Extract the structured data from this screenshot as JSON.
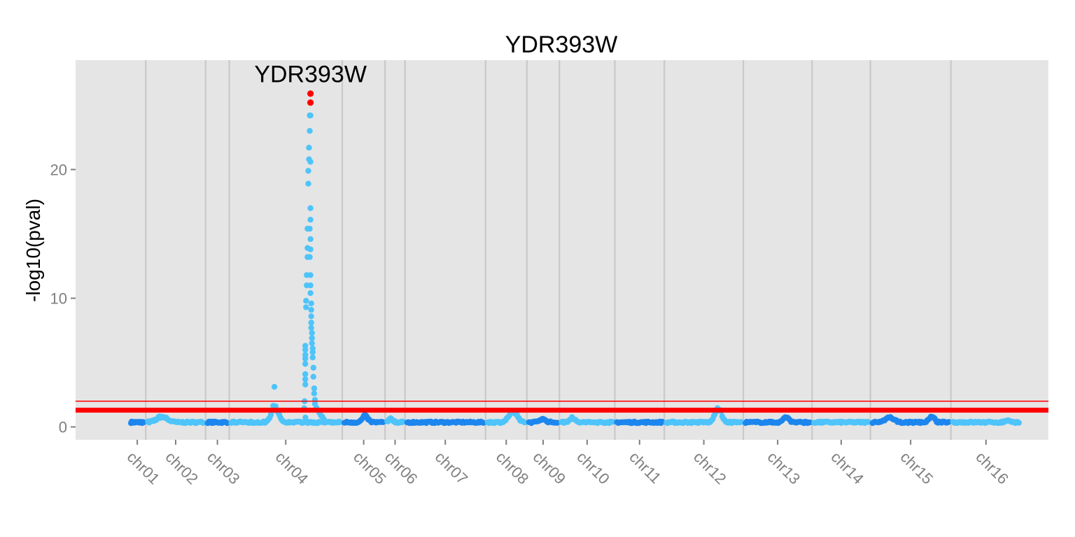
{
  "chart_data": {
    "type": "scatter",
    "title": "YDR393W",
    "xlabel": "",
    "ylabel": "-log10(pval)",
    "ylim": [
      -1,
      28.5
    ],
    "yticks": [
      0,
      10,
      20
    ],
    "grid": true,
    "legend": "none",
    "x_categories": [
      "chr01",
      "chr02",
      "chr03",
      "chr04",
      "chr05",
      "chr06",
      "chr07",
      "chr08",
      "chr09",
      "chr10",
      "chr11",
      "chr12",
      "chr13",
      "chr14",
      "chr15",
      "chr16"
    ],
    "chromosome_spans": [
      {
        "name": "chr01",
        "start": 0,
        "end": 0.23,
        "color": "#1C86EE"
      },
      {
        "name": "chr02",
        "start": 0.23,
        "end": 1.04,
        "color": "#4EC4FA"
      },
      {
        "name": "chr03",
        "start": 1.04,
        "end": 1.36,
        "color": "#1C86EE"
      },
      {
        "name": "chr04",
        "start": 1.36,
        "end": 2.89,
        "color": "#4EC4FA"
      },
      {
        "name": "chr05",
        "start": 2.89,
        "end": 3.47,
        "color": "#1C86EE"
      },
      {
        "name": "chr06",
        "start": 3.47,
        "end": 3.74,
        "color": "#4EC4FA"
      },
      {
        "name": "chr07",
        "start": 3.74,
        "end": 4.83,
        "color": "#1C86EE"
      },
      {
        "name": "chr08",
        "start": 4.83,
        "end": 5.39,
        "color": "#4EC4FA"
      },
      {
        "name": "chr09",
        "start": 5.39,
        "end": 5.83,
        "color": "#1C86EE"
      },
      {
        "name": "chr10",
        "start": 5.83,
        "end": 6.58,
        "color": "#4EC4FA"
      },
      {
        "name": "chr11",
        "start": 6.58,
        "end": 7.25,
        "color": "#1C86EE"
      },
      {
        "name": "chr12",
        "start": 7.25,
        "end": 8.32,
        "color": "#4EC4FA"
      },
      {
        "name": "chr13",
        "start": 8.32,
        "end": 9.25,
        "color": "#1C86EE"
      },
      {
        "name": "chr14",
        "start": 9.25,
        "end": 10.04,
        "color": "#4EC4FA"
      },
      {
        "name": "chr15",
        "start": 10.04,
        "end": 11.13,
        "color": "#1C86EE"
      },
      {
        "name": "chr16",
        "start": 11.13,
        "end": 12.08,
        "color": "#4EC4FA"
      }
    ],
    "baseline": 0.3,
    "bumps": [
      {
        "chr": "chr02",
        "x": 0.45,
        "peak": 0.8,
        "width": 0.1
      },
      {
        "chr": "chr04",
        "x": 1.98,
        "peak": 1.5,
        "width": 0.07
      },
      {
        "chr": "chr04",
        "x": 1.97,
        "peak": 2.1,
        "width": 0.01
      },
      {
        "chr": "chr04",
        "x": 2.38,
        "peak": 2.0,
        "width": 0.01
      },
      {
        "chr": "chr05",
        "x": 3.2,
        "peak": 0.9,
        "width": 0.05
      },
      {
        "chr": "chr06",
        "x": 3.55,
        "peak": 0.6,
        "width": 0.04
      },
      {
        "chr": "chr08",
        "x": 5.2,
        "peak": 1.2,
        "width": 0.08
      },
      {
        "chr": "chr09",
        "x": 5.6,
        "peak": 0.6,
        "width": 0.06
      },
      {
        "chr": "chr10",
        "x": 6.0,
        "peak": 0.7,
        "width": 0.05
      },
      {
        "chr": "chr12",
        "x": 7.98,
        "peak": 1.6,
        "width": 0.06
      },
      {
        "chr": "chr13",
        "x": 8.9,
        "peak": 0.8,
        "width": 0.05
      },
      {
        "chr": "chr15",
        "x": 10.3,
        "peak": 0.7,
        "width": 0.08
      },
      {
        "chr": "chr15",
        "x": 10.87,
        "peak": 0.8,
        "width": 0.05
      },
      {
        "chr": "chr16",
        "x": 11.9,
        "peak": 0.5,
        "width": 0.04
      }
    ],
    "peak_points": [
      {
        "x": 2.38,
        "y": 2.0
      },
      {
        "x": 2.39,
        "y": 3.3
      },
      {
        "x": 2.39,
        "y": 3.7
      },
      {
        "x": 2.39,
        "y": 4.1
      },
      {
        "x": 2.39,
        "y": 4.9
      },
      {
        "x": 2.39,
        "y": 5.3
      },
      {
        "x": 2.39,
        "y": 5.6
      },
      {
        "x": 2.39,
        "y": 6.0
      },
      {
        "x": 2.39,
        "y": 6.3
      },
      {
        "x": 2.4,
        "y": 9.3
      },
      {
        "x": 2.4,
        "y": 9.8
      },
      {
        "x": 2.41,
        "y": 11.0
      },
      {
        "x": 2.41,
        "y": 11.8
      },
      {
        "x": 2.42,
        "y": 13.2
      },
      {
        "x": 2.42,
        "y": 13.9
      },
      {
        "x": 2.42,
        "y": 15.4
      },
      {
        "x": 2.43,
        "y": 18.9
      },
      {
        "x": 2.43,
        "y": 19.9
      },
      {
        "x": 2.44,
        "y": 20.8
      },
      {
        "x": 2.44,
        "y": 21.7
      },
      {
        "x": 2.45,
        "y": 23.0
      },
      {
        "x": 2.45,
        "y": 24.2
      },
      {
        "x": 2.45,
        "y": 13.2
      },
      {
        "x": 2.45,
        "y": 15.4
      },
      {
        "x": 2.46,
        "y": 24.2
      },
      {
        "x": 2.46,
        "y": 20.6
      },
      {
        "x": 2.46,
        "y": 17.0
      },
      {
        "x": 2.46,
        "y": 16.1
      },
      {
        "x": 2.46,
        "y": 14.6
      },
      {
        "x": 2.46,
        "y": 13.8
      },
      {
        "x": 2.46,
        "y": 11.8
      },
      {
        "x": 2.46,
        "y": 11.0
      },
      {
        "x": 2.46,
        "y": 10.4
      },
      {
        "x": 2.47,
        "y": 9.6
      },
      {
        "x": 2.47,
        "y": 9.1
      },
      {
        "x": 2.47,
        "y": 8.6
      },
      {
        "x": 2.47,
        "y": 8.1
      },
      {
        "x": 2.47,
        "y": 7.7
      },
      {
        "x": 2.48,
        "y": 7.3
      },
      {
        "x": 2.48,
        "y": 6.9
      },
      {
        "x": 2.48,
        "y": 6.5
      },
      {
        "x": 2.49,
        "y": 6.1
      },
      {
        "x": 2.49,
        "y": 5.8
      },
      {
        "x": 2.49,
        "y": 5.4
      },
      {
        "x": 2.5,
        "y": 4.6
      },
      {
        "x": 2.5,
        "y": 3.9
      },
      {
        "x": 2.51,
        "y": 3.0
      },
      {
        "x": 2.51,
        "y": 2.6
      },
      {
        "x": 2.52,
        "y": 2.1
      },
      {
        "x": 2.52,
        "y": 1.8
      },
      {
        "x": 2.54,
        "y": 1.5
      },
      {
        "x": 2.56,
        "y": 1.3
      },
      {
        "x": 2.58,
        "y": 1.1
      },
      {
        "x": 2.6,
        "y": 0.9
      },
      {
        "x": 2.62,
        "y": 0.8
      },
      {
        "x": 2.64,
        "y": 0.6
      }
    ],
    "highlight_points": [
      {
        "x": 2.46,
        "y": 25.9,
        "color": "#FF0000"
      },
      {
        "x": 2.46,
        "y": 25.2,
        "color": "#FF0000"
      }
    ],
    "annotations": [
      {
        "text": "YDR393W",
        "x": 2.46,
        "y": 26.9
      }
    ],
    "hlines": [
      {
        "y": 1.3,
        "color": "#FF0000",
        "kind": "thick"
      },
      {
        "y": 2.0,
        "color": "#FF0000",
        "kind": "thin"
      }
    ],
    "vlines_at_chrom_boundaries": true,
    "xlim": [
      -0.72,
      12.45
    ]
  }
}
